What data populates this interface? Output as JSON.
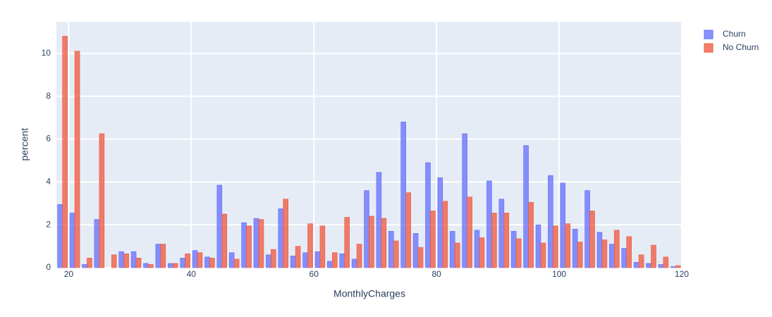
{
  "chart_data": {
    "type": "histogram",
    "x_label": "MonthlyCharges",
    "y_label": "percent",
    "bins": [
      18,
      20,
      22,
      24,
      26,
      28,
      30,
      32,
      34,
      36,
      38,
      40,
      42,
      44,
      46,
      48,
      50,
      52,
      54,
      56,
      58,
      60,
      62,
      64,
      66,
      68,
      70,
      72,
      74,
      76,
      78,
      80,
      82,
      84,
      86,
      88,
      90,
      92,
      94,
      96,
      98,
      100,
      102,
      104,
      106,
      108,
      110,
      112,
      114,
      116,
      118,
      120
    ],
    "series": [
      {
        "name": "Churn",
        "color": "#636efa",
        "values": [
          2.95,
          2.55,
          0.15,
          2.25,
          0,
          0.75,
          0.75,
          0.2,
          1.1,
          0.2,
          0.45,
          0.8,
          0.5,
          3.85,
          0.7,
          2.1,
          2.3,
          0.6,
          2.75,
          0.55,
          0.7,
          0.75,
          0.3,
          0.65,
          0.4,
          3.6,
          4.45,
          1.7,
          6.8,
          1.6,
          4.9,
          4.2,
          1.7,
          6.25,
          1.75,
          4.05,
          3.2,
          1.7,
          5.7,
          2.0,
          4.3,
          3.95,
          1.8,
          3.6,
          1.65,
          1.1,
          0.9,
          0.25,
          0.2,
          0.15,
          0.05
        ]
      },
      {
        "name": "No Churn",
        "color": "#ef553b",
        "values": [
          10.8,
          10.1,
          0.45,
          6.25,
          0.6,
          0.65,
          0.45,
          0.15,
          1.1,
          0.2,
          0.65,
          0.7,
          0.45,
          2.5,
          0.4,
          1.95,
          2.25,
          0.85,
          3.2,
          1.0,
          2.05,
          1.95,
          0.7,
          2.35,
          1.1,
          2.4,
          2.3,
          1.25,
          3.5,
          0.95,
          2.65,
          3.1,
          1.15,
          3.3,
          1.4,
          2.55,
          2.55,
          1.35,
          3.05,
          1.15,
          1.95,
          2.05,
          1.2,
          2.65,
          1.3,
          1.75,
          1.45,
          0.6,
          1.05,
          0.5,
          0.1
        ]
      }
    ],
    "xlim": [
      18,
      120
    ],
    "xticks": [
      20,
      40,
      60,
      80,
      100,
      120
    ],
    "ylim": [
      0,
      11.47
    ],
    "yticks": [
      0,
      2,
      4,
      6,
      8,
      10
    ],
    "grid": true,
    "legend": "top-right"
  }
}
